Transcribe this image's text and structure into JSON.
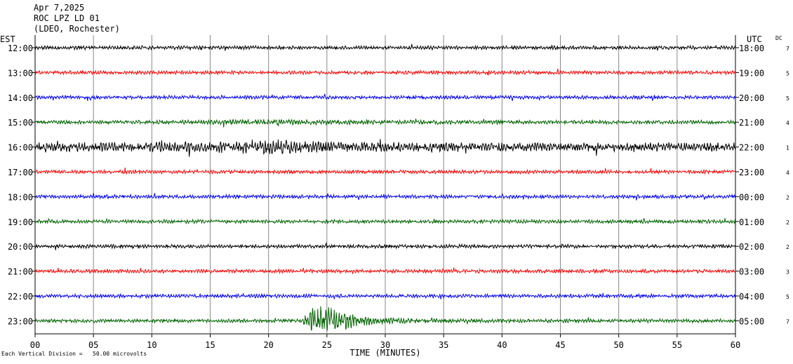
{
  "header": {
    "date": "Apr 7,2025",
    "station": "ROC LPZ LD 01",
    "location": "(LDEO, Rochester)"
  },
  "left_axis_title": "EST",
  "right_axis_title": "UTC",
  "dc_title": "DC",
  "footnote": "Each Vertical Division =   50.00 microvolts",
  "colors": {
    "line_cycle": [
      "#000000",
      "#ff0000",
      "#0000ff",
      "#006400"
    ],
    "grid": "#888888"
  },
  "chart_data": {
    "type": "line",
    "title": "",
    "xlabel": "TIME (MINUTES)",
    "xlim": [
      0,
      60
    ],
    "x_ticks": [
      "00",
      "05",
      "10",
      "15",
      "20",
      "25",
      "30",
      "35",
      "40",
      "45",
      "50",
      "55",
      "60"
    ],
    "rows": [
      {
        "est": "12:00",
        "utc": "18:00",
        "dc": "7",
        "color": "#000000",
        "amplitude": 1.0
      },
      {
        "est": "13:00",
        "utc": "19:00",
        "dc": "5",
        "color": "#ff0000",
        "amplitude": 1.0
      },
      {
        "est": "14:00",
        "utc": "20:00",
        "dc": "5",
        "color": "#0000ff",
        "amplitude": 1.0
      },
      {
        "est": "15:00",
        "utc": "21:00",
        "dc": "4",
        "color": "#006400",
        "amplitude": 1.6
      },
      {
        "est": "16:00",
        "utc": "22:00",
        "dc": "1",
        "color": "#000000",
        "amplitude": 4.5
      },
      {
        "est": "17:00",
        "utc": "23:00",
        "dc": "4",
        "color": "#ff0000",
        "amplitude": 1.2
      },
      {
        "est": "18:00",
        "utc": "00:00",
        "dc": "2",
        "color": "#0000ff",
        "amplitude": 1.0
      },
      {
        "est": "19:00",
        "utc": "01:00",
        "dc": "2",
        "color": "#006400",
        "amplitude": 1.0
      },
      {
        "est": "20:00",
        "utc": "02:00",
        "dc": "2",
        "color": "#000000",
        "amplitude": 1.0
      },
      {
        "est": "21:00",
        "utc": "03:00",
        "dc": "3",
        "color": "#ff0000",
        "amplitude": 1.0
      },
      {
        "est": "22:00",
        "utc": "04:00",
        "dc": "5",
        "color": "#0000ff",
        "amplitude": 1.0
      },
      {
        "est": "23:00",
        "utc": "05:00",
        "dc": "7",
        "color": "#006400",
        "amplitude": 1.3
      }
    ],
    "events": [
      {
        "row": "15:00",
        "start_minute": 10.5,
        "end_minute": 60,
        "peak_minute": 20
      },
      {
        "row": "16:00",
        "start_minute": 0,
        "end_minute": 60,
        "peak_minute": 20
      },
      {
        "row": "23:00",
        "start_minute": 23,
        "end_minute": 36,
        "peak_minute": 25
      }
    ]
  }
}
